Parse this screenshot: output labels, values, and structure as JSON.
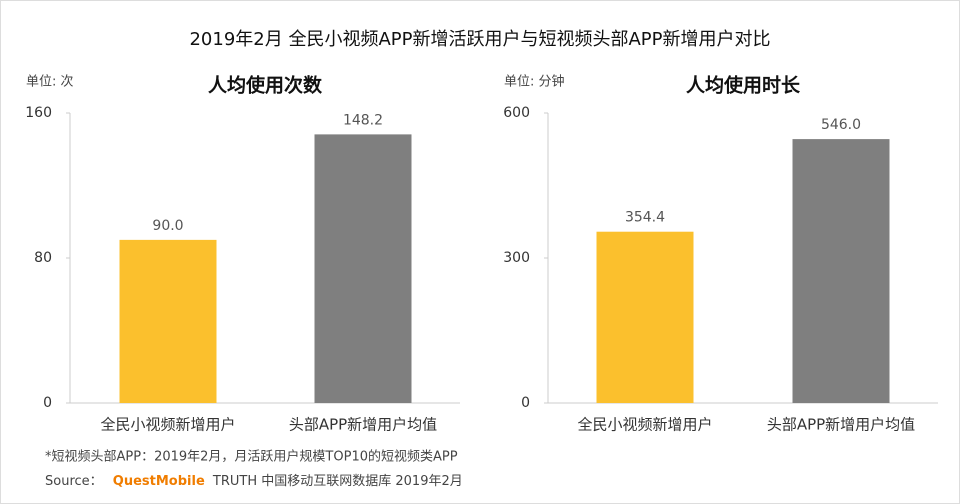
{
  "title": "2019年2月 全民小视频APP新增活跃用户与短视频头部APP新增用户对比",
  "chart_data": [
    {
      "type": "bar",
      "unit": "单位: 次",
      "title": "人均使用次数",
      "categories": [
        "全民小视频新增用户",
        "头部APP新增用户均值"
      ],
      "values": [
        90.0,
        148.2
      ],
      "value_labels": [
        "90.0",
        "148.2"
      ],
      "colors": [
        "#fbc02d",
        "#7f7f7f"
      ],
      "ylim": [
        0,
        160
      ],
      "yticks": [
        0,
        80,
        160
      ]
    },
    {
      "type": "bar",
      "unit": "单位: 分钟",
      "title": "人均使用时长",
      "categories": [
        "全民小视频新增用户",
        "头部APP新增用户均值"
      ],
      "values": [
        354.4,
        546.0
      ],
      "value_labels": [
        "354.4",
        "546.0"
      ],
      "colors": [
        "#fbc02d",
        "#7f7f7f"
      ],
      "ylim": [
        0,
        600
      ],
      "yticks": [
        0,
        300,
        600
      ]
    }
  ],
  "footnote": "*短视频头部APP：2019年2月，月活跃用户规模TOP10的短视频类APP",
  "source": {
    "prefix": "Source：",
    "brand": "QuestMobile",
    "rest": "TRUTH 中国移动互联网数据库 2019年2月"
  }
}
